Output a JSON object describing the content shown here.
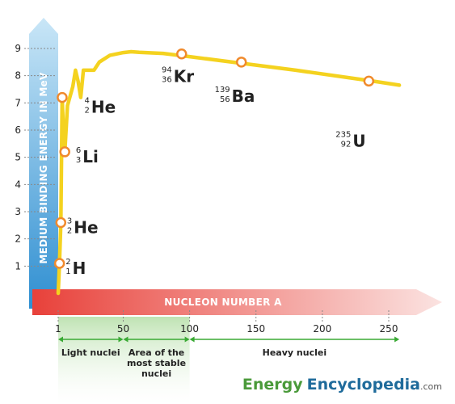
{
  "chart_data": {
    "type": "line",
    "title": "",
    "xlabel": "NUCLEON NUMBER A",
    "ylabel": "MEDIUM BINDING ENERGY IN MeV",
    "xlim": [
      0,
      275
    ],
    "ylim": [
      0,
      9
    ],
    "xticks": [
      1,
      50,
      100,
      150,
      200,
      250
    ],
    "yticks": [
      1,
      2,
      3,
      4,
      5,
      6,
      7,
      8,
      9
    ],
    "curve": {
      "x": [
        1,
        2,
        3,
        4,
        5,
        6,
        8,
        12,
        14,
        16,
        18,
        20,
        24,
        28,
        32,
        40,
        50,
        56,
        62,
        80,
        100,
        140,
        180,
        238,
        258
      ],
      "y": [
        0,
        1.1,
        2.6,
        7.2,
        5.9,
        5.2,
        6.9,
        7.6,
        8.2,
        7.8,
        7.2,
        8.2,
        8.2,
        8.2,
        8.5,
        8.75,
        8.85,
        8.88,
        8.86,
        8.82,
        8.7,
        8.45,
        8.2,
        7.8,
        7.65
      ]
    },
    "points": [
      {
        "x": 2,
        "y": 1.1,
        "symbol": "H",
        "mass": "2",
        "atomic": "1"
      },
      {
        "x": 3,
        "y": 2.6,
        "symbol": "He",
        "mass": "3",
        "atomic": "2"
      },
      {
        "x": 4,
        "y": 7.2,
        "symbol": "He",
        "mass": "4",
        "atomic": "2"
      },
      {
        "x": 6,
        "y": 5.2,
        "symbol": "Li",
        "mass": "6",
        "atomic": "3"
      },
      {
        "x": 94,
        "y": 8.8,
        "symbol": "Kr",
        "mass": "94",
        "atomic": "36"
      },
      {
        "x": 139,
        "y": 8.5,
        "symbol": "Ba",
        "mass": "139",
        "atomic": "56"
      },
      {
        "x": 235,
        "y": 7.8,
        "symbol": "U",
        "mass": "235",
        "atomic": "92"
      }
    ],
    "regions": [
      {
        "from": 1,
        "to": 50,
        "label": [
          "Light nuclei"
        ]
      },
      {
        "from": 50,
        "to": 100,
        "label": [
          "Area of the",
          "most stable",
          "nuclei"
        ]
      },
      {
        "from": 100,
        "to": 258,
        "label": [
          "Heavy nuclei"
        ]
      }
    ],
    "grid": false,
    "colors": {
      "curve": "#f4d21f",
      "point_stroke": "#f08a2c",
      "x_arrow_start": "#e8413a",
      "y_arrow_start": "#2f8fd1",
      "region": "#7fc76a",
      "region_arrow": "#3aaa35"
    }
  },
  "branding": {
    "word1": "Energy",
    "word2": "Encyclopedia",
    "suffix": ".com"
  }
}
